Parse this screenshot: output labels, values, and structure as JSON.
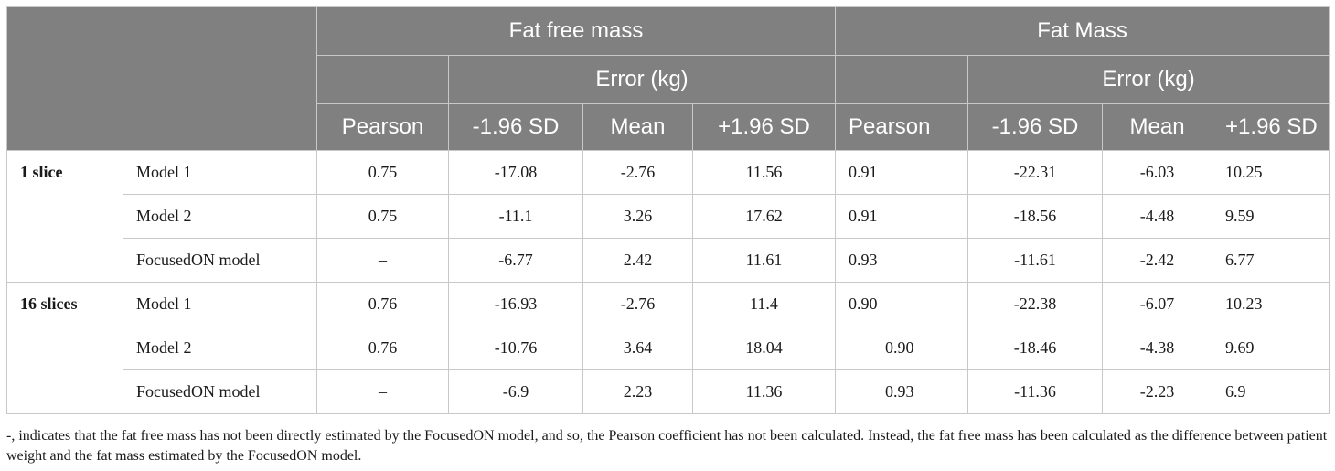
{
  "header": {
    "groups": [
      "Fat free mass",
      "Fat Mass"
    ],
    "error_label": "Error (kg)",
    "columns": [
      "Pearson",
      "-1.96 SD",
      "Mean",
      "+1.96 SD",
      "Pearson",
      "-1.96 SD",
      "Mean",
      "+1.96 SD"
    ]
  },
  "sections": [
    {
      "label": "1 slice",
      "rows": [
        {
          "model": "Model 1",
          "values": [
            "0.75",
            "-17.08",
            "-2.76",
            "11.56",
            "0.91",
            "-22.31",
            "-6.03",
            "10.25"
          ]
        },
        {
          "model": "Model 2",
          "values": [
            "0.75",
            "-11.1",
            "3.26",
            "17.62",
            "0.91",
            "-18.56",
            "-4.48",
            "9.59"
          ]
        },
        {
          "model": "FocusedON model",
          "values": [
            "–",
            "-6.77",
            "2.42",
            "11.61",
            "0.93",
            "-11.61",
            "-2.42",
            "6.77"
          ]
        }
      ]
    },
    {
      "label": "16 slices",
      "rows": [
        {
          "model": "Model 1",
          "values": [
            "0.76",
            "-16.93",
            "-2.76",
            "11.4",
            "0.90",
            "-22.38",
            "-6.07",
            "10.23"
          ]
        },
        {
          "model": "Model 2",
          "values": [
            "0.76",
            "-10.76",
            "3.64",
            "18.04",
            "0.90",
            "-18.46",
            "-4.38",
            "9.69"
          ]
        },
        {
          "model": "FocusedON model",
          "values": [
            "–",
            "-6.9",
            "2.23",
            "11.36",
            "0.93",
            "-11.36",
            "-2.23",
            "6.9"
          ]
        }
      ]
    }
  ],
  "footnote": "-, indicates that the fat free mass has not been directly estimated by the FocusedON model, and so, the Pearson coefficient has not been calculated. Instead, the fat free mass has been calculated as the difference between patient weight and the fat mass estimated by the FocusedON model."
}
